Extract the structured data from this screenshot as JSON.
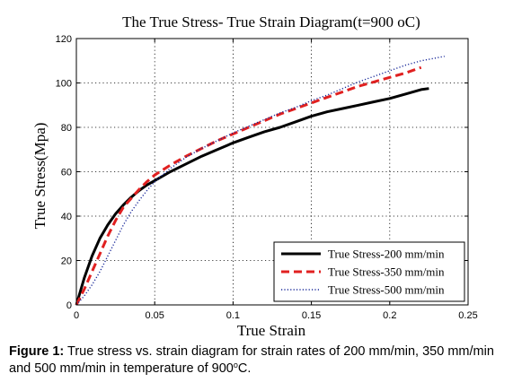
{
  "chart_data": {
    "type": "line",
    "title": "The True Stress- True Strain Diagram(t=900 oC)",
    "xlabel": "True Strain",
    "ylabel": "True Stress(Mpa)",
    "xlim": [
      0,
      0.25
    ],
    "ylim": [
      0,
      120
    ],
    "xticks": [
      0,
      0.05,
      0.1,
      0.15,
      0.2,
      0.25
    ],
    "xtick_labels": [
      "0",
      "0.05",
      "0.1",
      "0.15",
      "0.2",
      "0.25"
    ],
    "yticks": [
      0,
      20,
      40,
      60,
      80,
      100,
      120
    ],
    "ytick_labels": [
      "0",
      "20",
      "40",
      "60",
      "80",
      "100",
      "120"
    ],
    "grid": true,
    "legend_position": "bottom-right",
    "series": [
      {
        "name": "True Stress-200 mm/min",
        "color": "#000000",
        "style": "solid",
        "x": [
          0,
          0.005,
          0.01,
          0.015,
          0.02,
          0.025,
          0.03,
          0.035,
          0.04,
          0.045,
          0.05,
          0.06,
          0.07,
          0.08,
          0.09,
          0.1,
          0.11,
          0.12,
          0.13,
          0.14,
          0.15,
          0.16,
          0.17,
          0.18,
          0.19,
          0.2,
          0.21,
          0.22,
          0.225
        ],
        "y": [
          0,
          12,
          22,
          30,
          36,
          41,
          45,
          48.5,
          51.5,
          54,
          56,
          60,
          63.5,
          67,
          70,
          73,
          75.5,
          78,
          80,
          82.5,
          85,
          87,
          88.5,
          90,
          91.5,
          93,
          95,
          97,
          97.5
        ]
      },
      {
        "name": "True Stress-350 mm/min",
        "color": "#e02020",
        "style": "dashed",
        "x": [
          0,
          0.005,
          0.01,
          0.015,
          0.02,
          0.025,
          0.03,
          0.035,
          0.04,
          0.045,
          0.05,
          0.06,
          0.07,
          0.08,
          0.09,
          0.1,
          0.11,
          0.12,
          0.13,
          0.14,
          0.15,
          0.16,
          0.17,
          0.18,
          0.19,
          0.2,
          0.21,
          0.22
        ],
        "y": [
          0,
          7,
          15,
          23,
          31,
          38,
          44,
          48,
          52,
          55.5,
          58.5,
          63,
          67,
          70.5,
          74,
          77,
          80,
          83,
          86,
          88.5,
          91,
          93.5,
          96,
          98.5,
          100.5,
          102.5,
          104.5,
          107
        ]
      },
      {
        "name": "True Stress-500 mm/min",
        "color": "#1a2a9a",
        "style": "dotted",
        "x": [
          0,
          0.005,
          0.01,
          0.015,
          0.02,
          0.025,
          0.03,
          0.035,
          0.04,
          0.045,
          0.05,
          0.06,
          0.07,
          0.08,
          0.09,
          0.1,
          0.11,
          0.12,
          0.13,
          0.14,
          0.15,
          0.16,
          0.17,
          0.18,
          0.19,
          0.2,
          0.21,
          0.22,
          0.235
        ],
        "y": [
          0,
          4,
          9,
          15,
          22,
          29,
          36,
          42,
          47,
          51.5,
          55.5,
          61.5,
          66.5,
          70.5,
          74,
          77.5,
          80.5,
          83.5,
          86.5,
          89,
          92,
          94.5,
          97.5,
          100.5,
          103,
          105.5,
          108,
          110,
          112
        ]
      }
    ]
  },
  "caption": {
    "label": "Figure 1:",
    "text": " True stress vs. strain diagram for strain rates of 200 mm/min, 350 mm/min and 500 mm/min in temperature of 900",
    "superscript": "o",
    "suffix": "C."
  }
}
